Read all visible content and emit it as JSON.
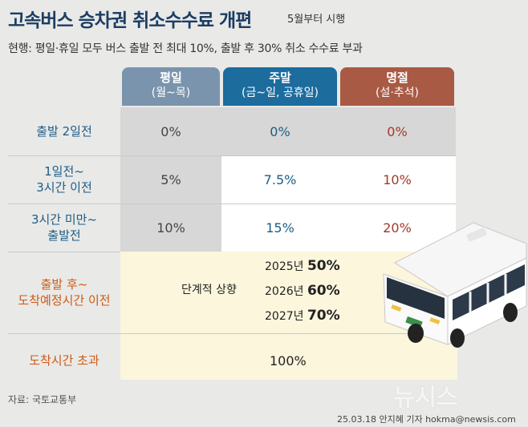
{
  "header": {
    "title": "고속버스 승차권 취소수수료 개편",
    "title_sub": "5월부터 시행",
    "subtitle": "현행: 평일·휴일 모두 버스 출발 전 최대 10%, 출발 후 30% 취소 수수료 부과"
  },
  "columns": [
    {
      "name": "평일",
      "sub": "(월~목)"
    },
    {
      "name": "주말",
      "sub": "(금~일, 공휴일)"
    },
    {
      "name": "명절",
      "sub": "(설·추석)"
    }
  ],
  "rows": [
    {
      "label_line1": "출발 2일전",
      "label_line2": "",
      "values": [
        "0%",
        "0%",
        "0%"
      ]
    },
    {
      "label_line1": "1일전~",
      "label_line2": "3시간 이전",
      "values": [
        "5%",
        "7.5%",
        "10%"
      ]
    },
    {
      "label_line1": "3시간 미만~",
      "label_line2": "출발전",
      "values": [
        "10%",
        "15%",
        "20%"
      ]
    }
  ],
  "after_departure": {
    "label_line1": "출발 후~",
    "label_line2": "도착예정시간 이전",
    "phase_label": "단계적 상향",
    "phases": [
      {
        "year": "2025년",
        "rate": "50%"
      },
      {
        "year": "2026년",
        "rate": "60%"
      },
      {
        "year": "2027년",
        "rate": "70%"
      }
    ]
  },
  "after_arrival": {
    "label": "도착시간 초과",
    "value": "100%"
  },
  "footer": {
    "source": "자료: 국토교통부",
    "credit": "25.03.18 안지혜 기자 hokma@newsis.com",
    "logo": "뉴시스"
  },
  "colors": {
    "weekday": "#7a94ad",
    "weekend": "#1c6c9e",
    "holiday": "#a95a44",
    "title": "#1c3d63"
  }
}
